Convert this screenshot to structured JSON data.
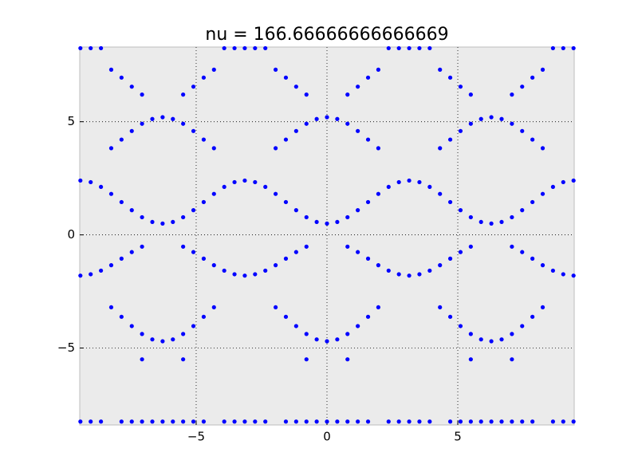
{
  "chart_data": {
    "type": "scatter",
    "title": "nu = 166.66666666666669",
    "color": "#0000ff",
    "grid": true,
    "xlim": [
      -9.45,
      9.45
    ],
    "ylim": [
      -8.4,
      8.3
    ],
    "xticks": [
      {
        "value": -5,
        "label": "−5"
      },
      0,
      5
    ],
    "yticks": [
      {
        "value": -5,
        "label": "−5"
      },
      0,
      5
    ],
    "x": [
      -9.425,
      -9.032,
      -8.639,
      -8.247,
      -7.854,
      -7.461,
      -7.069,
      -6.676,
      -6.283,
      -5.89,
      -5.498,
      -5.105,
      -4.712,
      -4.32,
      -3.927,
      -3.534,
      -3.142,
      -2.749,
      -2.356,
      -1.963,
      -1.571,
      -1.178,
      -0.785,
      -0.393,
      0,
      0.393,
      0.785,
      1.178,
      1.571,
      1.963,
      2.356,
      2.749,
      3.142,
      3.534,
      3.927,
      4.32,
      4.712,
      5.105,
      5.498,
      5.89,
      6.283,
      6.676,
      7.069,
      7.461,
      7.854,
      8.247,
      8.639,
      9.032,
      9.425
    ],
    "series": [
      {
        "values": [
          2.4,
          2.33,
          2.12,
          1.81,
          1.45,
          1.09,
          0.78,
          0.57,
          0.5,
          0.57,
          0.78,
          1.09,
          1.45,
          1.81,
          2.12,
          2.33,
          2.4,
          2.33,
          2.12,
          1.81,
          1.45,
          1.09,
          0.78,
          0.57,
          0.5,
          0.57,
          0.78,
          1.09,
          1.45,
          1.81,
          2.12,
          2.33,
          2.4,
          2.33,
          2.12,
          1.81,
          1.45,
          1.09,
          0.78,
          0.57,
          0.5,
          0.57,
          0.78,
          1.09,
          1.45,
          1.81,
          2.12,
          2.33,
          2.4
        ]
      },
      {
        "values": [
          -1.8,
          -1.74,
          -1.58,
          -1.34,
          -1.05,
          -0.76,
          -0.52,
          null,
          null,
          null,
          -0.52,
          -0.76,
          -1.05,
          -1.34,
          -1.58,
          -1.74,
          -1.8,
          -1.74,
          -1.58,
          -1.34,
          -1.05,
          -0.76,
          -0.52,
          null,
          null,
          null,
          -0.52,
          -0.76,
          -1.05,
          -1.34,
          -1.58,
          -1.74,
          -1.8,
          -1.74,
          -1.58,
          -1.34,
          -1.05,
          -0.76,
          -0.52,
          null,
          null,
          null,
          -0.52,
          -0.76,
          -1.05,
          -1.34,
          -1.58,
          -1.74,
          -1.8
        ]
      },
      {
        "values": [
          null,
          null,
          null,
          3.83,
          4.21,
          4.59,
          4.91,
          5.12,
          5.2,
          5.12,
          4.91,
          4.59,
          4.21,
          3.83,
          null,
          null,
          null,
          null,
          null,
          3.83,
          4.21,
          4.59,
          4.91,
          5.12,
          5.2,
          5.12,
          4.91,
          4.59,
          4.21,
          3.83,
          null,
          null,
          null,
          null,
          null,
          3.83,
          4.21,
          4.59,
          4.91,
          5.12,
          5.2,
          5.12,
          4.91,
          4.59,
          4.21,
          3.83,
          null,
          null,
          null
        ]
      },
      {
        "values": [
          null,
          null,
          null,
          -3.2,
          -3.62,
          -4.03,
          -4.38,
          -4.62,
          -4.7,
          -4.62,
          -4.38,
          -4.03,
          -3.62,
          -3.2,
          null,
          null,
          null,
          null,
          null,
          -3.2,
          -3.62,
          -4.03,
          -4.38,
          -4.62,
          -4.7,
          -4.62,
          -4.38,
          -4.03,
          -3.62,
          -3.2,
          null,
          null,
          null,
          null,
          null,
          -3.2,
          -3.62,
          -4.03,
          -4.38,
          -4.62,
          -4.7,
          -4.62,
          -4.38,
          -4.03,
          -3.62,
          -3.2,
          null,
          null,
          null
        ]
      },
      {
        "values": [
          null,
          null,
          null,
          7.3,
          6.95,
          6.55,
          6.2,
          null,
          null,
          null,
          6.2,
          6.55,
          6.95,
          7.3,
          null,
          null,
          null,
          null,
          null,
          7.3,
          6.95,
          6.55,
          6.2,
          null,
          null,
          null,
          6.2,
          6.55,
          6.95,
          7.3,
          null,
          null,
          null,
          null,
          null,
          7.3,
          6.95,
          6.55,
          6.2,
          null,
          null,
          null,
          6.2,
          6.55,
          6.95,
          7.3,
          null,
          null,
          null
        ]
      },
      {
        "values": [
          8.25,
          8.25,
          8.25,
          null,
          null,
          null,
          null,
          null,
          null,
          null,
          null,
          null,
          null,
          null,
          8.25,
          8.25,
          8.25,
          8.25,
          8.25,
          null,
          null,
          null,
          null,
          null,
          null,
          null,
          null,
          null,
          null,
          null,
          8.25,
          8.25,
          8.25,
          8.25,
          8.25,
          null,
          null,
          null,
          null,
          null,
          null,
          null,
          null,
          null,
          null,
          null,
          8.25,
          8.25,
          8.25
        ]
      },
      {
        "values": [
          -8.25,
          -8.25,
          -8.25,
          null,
          -8.25,
          -8.25,
          -8.25,
          -8.25,
          -8.25,
          -8.25,
          -8.25,
          -8.25,
          -8.25,
          null,
          -8.25,
          -8.25,
          -8.25,
          -8.25,
          -8.25,
          null,
          -8.25,
          -8.25,
          -8.25,
          -8.25,
          -8.25,
          -8.25,
          -8.25,
          -8.25,
          -8.25,
          null,
          -8.25,
          -8.25,
          -8.25,
          -8.25,
          -8.25,
          null,
          -8.25,
          -8.25,
          -8.25,
          -8.25,
          -8.25,
          -8.25,
          -8.25,
          -8.25,
          -8.25,
          null,
          -8.25,
          -8.25,
          -8.25
        ]
      },
      {
        "values": [
          null,
          null,
          null,
          null,
          null,
          null,
          -5.5,
          null,
          null,
          null,
          -5.5,
          null,
          null,
          null,
          null,
          null,
          null,
          null,
          null,
          null,
          null,
          null,
          -5.5,
          null,
          null,
          null,
          -5.5,
          null,
          null,
          null,
          null,
          null,
          null,
          null,
          null,
          null,
          null,
          null,
          -5.5,
          null,
          null,
          null,
          -5.5,
          null,
          null,
          null,
          null,
          null,
          null
        ]
      }
    ]
  }
}
